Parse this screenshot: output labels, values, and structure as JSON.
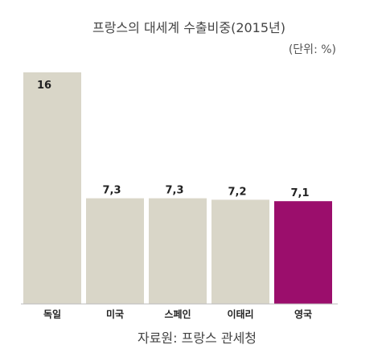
{
  "chart_data": {
    "type": "bar",
    "title": "프랑스의 대세계 수출비중(2015년)",
    "unit_label": "(단위: %)",
    "source": "자료원: 프랑스 관세청",
    "categories": [
      "독일",
      "미국",
      "스페인",
      "이태리",
      "영국"
    ],
    "values": [
      16,
      7.3,
      7.3,
      7.2,
      7.1
    ],
    "value_labels": [
      "16",
      "7,3",
      "7,3",
      "7,2",
      "7,1"
    ],
    "ylim": [
      0,
      16
    ],
    "grid": false,
    "colors": {
      "default": "#d9d6c8",
      "highlight": "#9b0e6c",
      "highlight_index": 4
    }
  }
}
